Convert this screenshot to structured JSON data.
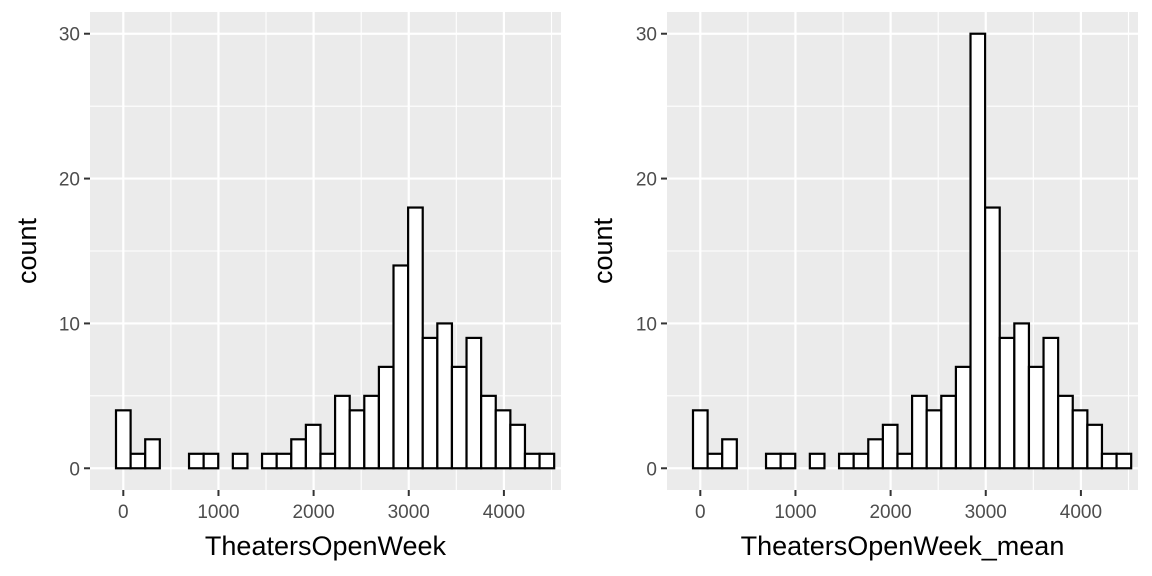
{
  "chart_data": [
    {
      "type": "bar",
      "subtype": "histogram",
      "xlabel": "TheatersOpenWeek",
      "ylabel": "count",
      "xlim": [
        -350,
        4600
      ],
      "ylim": [
        -1.5,
        31.5
      ],
      "x_ticks": [
        0,
        1000,
        2000,
        3000,
        4000
      ],
      "y_ticks": [
        0,
        10,
        20,
        30
      ],
      "bin_width": 153.5,
      "bin_centers": [
        0,
        153.5,
        307,
        460.5,
        614,
        767.5,
        921,
        1074.5,
        1228,
        1381.5,
        1535,
        1688.5,
        1842,
        1995.5,
        2149,
        2302.5,
        2456,
        2609.5,
        2763,
        2916.5,
        3070,
        3223.5,
        3377,
        3530.5,
        3684,
        3837.5,
        3991,
        4144.5,
        4298,
        4451.5
      ],
      "values": [
        4,
        1,
        2,
        0,
        0,
        1,
        1,
        0,
        1,
        0,
        1,
        1,
        2,
        3,
        1,
        5,
        4,
        5,
        7,
        14,
        18,
        9,
        10,
        7,
        9,
        5,
        4,
        3,
        1,
        1
      ]
    },
    {
      "type": "bar",
      "subtype": "histogram",
      "xlabel": "TheatersOpenWeek_mean",
      "ylabel": "count",
      "xlim": [
        -350,
        4600
      ],
      "ylim": [
        -1.5,
        31.5
      ],
      "x_ticks": [
        0,
        1000,
        2000,
        3000,
        4000
      ],
      "y_ticks": [
        0,
        10,
        20,
        30
      ],
      "bin_width": 153.5,
      "bin_centers": [
        0,
        153.5,
        307,
        460.5,
        614,
        767.5,
        921,
        1074.5,
        1228,
        1381.5,
        1535,
        1688.5,
        1842,
        1995.5,
        2149,
        2302.5,
        2456,
        2609.5,
        2763,
        2916.5,
        3070,
        3223.5,
        3377,
        3530.5,
        3684,
        3837.5,
        3991,
        4144.5,
        4298,
        4451.5
      ],
      "values": [
        4,
        1,
        2,
        0,
        0,
        1,
        1,
        0,
        1,
        0,
        1,
        1,
        2,
        3,
        1,
        5,
        4,
        5,
        7,
        30,
        18,
        9,
        10,
        7,
        9,
        5,
        4,
        3,
        1,
        1
      ]
    }
  ]
}
